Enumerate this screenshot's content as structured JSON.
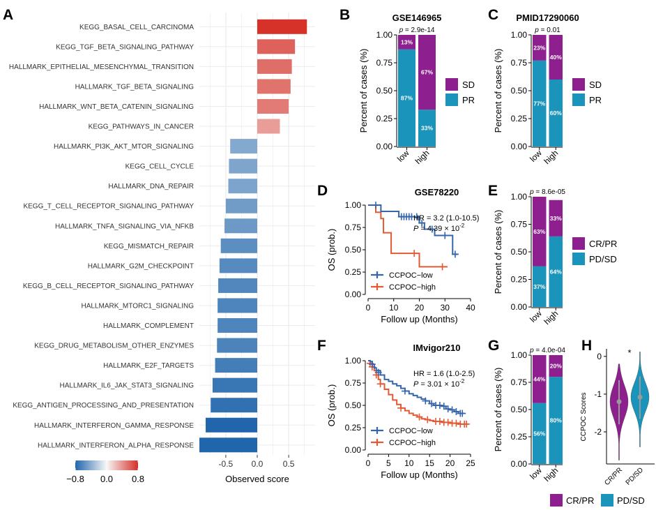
{
  "panel_letters": {
    "A": "A",
    "B": "B",
    "C": "C",
    "D": "D",
    "E": "E",
    "F": "F",
    "G": "G",
    "H": "H"
  },
  "colors": {
    "purple": "#8e1f8f",
    "teal": "#1a94bb",
    "blue_line": "#3565ab",
    "red_line": "#e25a33",
    "grid": "#ebebeb"
  },
  "chart_data": [
    {
      "id": "A",
      "type": "bar",
      "orientation": "horizontal",
      "xlabel": "Observed score",
      "xticks": [
        "-0.5",
        "0.0",
        "0.5"
      ],
      "xlim": [
        -0.92,
        0.92
      ],
      "legend": {
        "ticks": [
          "−0.8",
          "0.0",
          "0.8"
        ],
        "range": [
          -0.8,
          0.8
        ]
      },
      "categories": [
        "KEGG_BASAL_CELL_CARCINOMA",
        "KEGG_TGF_BETA_SIGNALING_PATHWAY",
        "HALLMARK_EPITHELIAL_MESENCHYMAL_TRANSITION",
        "HALLMARK_TGF_BETA_SIGNALING",
        "HALLMARK_WNT_BETA_CATENIN_SIGNALING",
        "KEGG_PATHWAYS_IN_CANCER",
        "HALLMARK_PI3K_AKT_MTOR_SIGNALING",
        "KEGG_CELL_CYCLE",
        "HALLMARK_DNA_REPAIR",
        "KEGG_T_CELL_RECEPTOR_SIGNALING_PATHWAY",
        "HALLMARK_TNFA_SIGNALING_VIA_NFKB",
        "KEGG_MISMATCH_REPAIR",
        "HALLMARK_G2M_CHECKPOINT",
        "KEGG_B_CELL_RECEPTOR_SIGNALING_PATHWAY",
        "HALLMARK_MTORC1_SIGNALING",
        "HALLMARK_COMPLEMENT",
        "KEGG_DRUG_METABOLISM_OTHER_ENZYMES",
        "HALLMARK_E2F_TARGETS",
        "HALLMARK_IL6_JAK_STAT3_SIGNALING",
        "KEGG_ANTIGEN_PROCESSING_AND_PRESENTATION",
        "HALLMARK_INTERFERON_GAMMA_RESPONSE",
        "HALLMARK_INTERFERON_ALPHA_RESPONSE"
      ],
      "values": [
        0.79,
        0.6,
        0.55,
        0.53,
        0.5,
        0.36,
        -0.43,
        -0.45,
        -0.46,
        -0.5,
        -0.52,
        -0.58,
        -0.6,
        -0.62,
        -0.63,
        -0.63,
        -0.64,
        -0.67,
        -0.71,
        -0.74,
        -0.82,
        -0.92
      ]
    },
    {
      "id": "B",
      "type": "stacked_bar",
      "title": "GSE146965",
      "pvalue": "p = 2.9e-14",
      "ylabel": "Percent of cases (%)",
      "yticks": [
        "0.00",
        "0.25",
        "0.50",
        "0.75",
        "1.00"
      ],
      "categories": [
        "low",
        "high"
      ],
      "series": [
        {
          "name": "PR",
          "values": [
            0.87,
            0.33
          ],
          "labels": [
            "87%",
            "33%"
          ]
        },
        {
          "name": "SD",
          "values": [
            0.13,
            0.67
          ],
          "labels": [
            "13%",
            "67%"
          ]
        }
      ],
      "legend": [
        "SD",
        "PR"
      ]
    },
    {
      "id": "C",
      "type": "stacked_bar",
      "title": "PMID17290060",
      "pvalue": "p = 0.01",
      "ylabel": "Percent of cases (%)",
      "yticks": [
        "0.00",
        "0.25",
        "0.50",
        "0.75",
        "1.00"
      ],
      "categories": [
        "low",
        "high"
      ],
      "series": [
        {
          "name": "PR",
          "values": [
            0.77,
            0.6
          ],
          "labels": [
            "77%",
            "60%"
          ]
        },
        {
          "name": "SD",
          "values": [
            0.23,
            0.4
          ],
          "labels": [
            "23%",
            "40%"
          ]
        }
      ],
      "legend": [
        "SD",
        "PR"
      ]
    },
    {
      "id": "D",
      "type": "line",
      "subtype": "kaplan-meier",
      "title": "GSE78220",
      "xlabel": "Follow up (Months)",
      "ylabel": "OS (prob.)",
      "xticks": [
        "0",
        "10",
        "20",
        "30",
        "40"
      ],
      "yticks": [
        "0.00",
        "0.25",
        "0.50",
        "0.75",
        "1.00"
      ],
      "xlim": [
        0,
        40
      ],
      "ylim": [
        0,
        1
      ],
      "hr_text": "HR = 3.2 (1.0-10.5)",
      "p_text": "P = 4.39 × 10",
      "p_exp": "-2",
      "series": [
        {
          "name": "CCPOC−low",
          "color": "blue",
          "steps": [
            [
              0,
              1
            ],
            [
              5,
              1
            ],
            [
              5,
              0.93
            ],
            [
              12,
              0.93
            ],
            [
              12,
              0.87
            ],
            [
              20,
              0.87
            ],
            [
              20,
              0.8
            ],
            [
              22,
              0.8
            ],
            [
              22,
              0.73
            ],
            [
              26,
              0.73
            ],
            [
              26,
              0.66
            ],
            [
              33,
              0.66
            ],
            [
              33,
              0.45
            ],
            [
              35,
              0.45
            ]
          ],
          "censors": [
            [
              3,
              1
            ],
            [
              13,
              0.87
            ],
            [
              14,
              0.87
            ],
            [
              15,
              0.87
            ],
            [
              16,
              0.87
            ],
            [
              17,
              0.87
            ],
            [
              19,
              0.87
            ],
            [
              21,
              0.8
            ],
            [
              25,
              0.73
            ],
            [
              30,
              0.66
            ],
            [
              34,
              0.45
            ]
          ]
        },
        {
          "name": "CCPOC−high",
          "color": "red",
          "steps": [
            [
              0,
              1
            ],
            [
              3,
              1
            ],
            [
              3,
              0.92
            ],
            [
              5,
              0.92
            ],
            [
              5,
              0.85
            ],
            [
              6,
              0.85
            ],
            [
              6,
              0.69
            ],
            [
              9,
              0.69
            ],
            [
              9,
              0.46
            ],
            [
              20,
              0.46
            ],
            [
              20,
              0.31
            ],
            [
              31,
              0.31
            ]
          ],
          "censors": [
            [
              18,
              0.46
            ],
            [
              29,
              0.31
            ]
          ]
        }
      ]
    },
    {
      "id": "E",
      "type": "stacked_bar",
      "pvalue": "p = 8.6e-05",
      "ylabel": "Percent of cases (%)",
      "yticks": [
        "0.00",
        "0.25",
        "0.50",
        "0.75",
        "1.00"
      ],
      "categories": [
        "low",
        "high"
      ],
      "series": [
        {
          "name": "PD/SD",
          "values": [
            0.37,
            0.64
          ],
          "labels": [
            "37%",
            "64%"
          ]
        },
        {
          "name": "CR/PR",
          "values": [
            0.63,
            0.33
          ],
          "labels": [
            "63%",
            "33%"
          ]
        }
      ],
      "legend": [
        "CR/PR",
        "PD/SD"
      ]
    },
    {
      "id": "F",
      "type": "line",
      "subtype": "kaplan-meier",
      "title": "IMvigor210",
      "xlabel": "Follow up (Months)",
      "ylabel": "OS (prob.)",
      "xticks": [
        "0",
        "5",
        "10",
        "15",
        "20",
        "25"
      ],
      "yticks": [
        "0.00",
        "0.25",
        "0.50",
        "0.75",
        "1.00"
      ],
      "xlim": [
        0,
        25
      ],
      "ylim": [
        0,
        1
      ],
      "hr_text": "HR = 1.6 (1.0-2.5)",
      "p_text": "P = 3.01 × 10",
      "p_exp": "-2",
      "series": [
        {
          "name": "CCPOC−low",
          "color": "blue",
          "steps": [
            [
              0,
              1
            ],
            [
              0.5,
              0.99
            ],
            [
              1,
              0.96
            ],
            [
              1.5,
              0.92
            ],
            [
              2,
              0.89
            ],
            [
              3,
              0.84
            ],
            [
              4,
              0.79
            ],
            [
              5,
              0.77
            ],
            [
              6,
              0.74
            ],
            [
              7,
              0.72
            ],
            [
              8,
              0.69
            ],
            [
              9,
              0.66
            ],
            [
              10,
              0.63
            ],
            [
              11,
              0.61
            ],
            [
              12,
              0.59
            ],
            [
              13,
              0.57
            ],
            [
              14,
              0.55
            ],
            [
              15,
              0.52
            ],
            [
              16,
              0.5
            ],
            [
              18,
              0.49
            ],
            [
              19,
              0.46
            ],
            [
              20,
              0.45
            ],
            [
              21,
              0.43
            ],
            [
              22,
              0.41
            ],
            [
              23.5,
              0.41
            ]
          ],
          "censors": [
            [
              1,
              0.96
            ],
            [
              2.5,
              0.87
            ],
            [
              9,
              0.66
            ],
            [
              14,
              0.55
            ],
            [
              15.5,
              0.52
            ],
            [
              16.5,
              0.5
            ],
            [
              17.5,
              0.5
            ],
            [
              18.5,
              0.49
            ],
            [
              19.5,
              0.46
            ],
            [
              20.5,
              0.45
            ],
            [
              21.5,
              0.43
            ],
            [
              22.5,
              0.41
            ],
            [
              23,
              0.41
            ]
          ]
        },
        {
          "name": "CCPOC−high",
          "color": "red",
          "steps": [
            [
              0,
              1
            ],
            [
              0.5,
              0.97
            ],
            [
              1,
              0.93
            ],
            [
              1.5,
              0.89
            ],
            [
              2,
              0.84
            ],
            [
              2.5,
              0.79
            ],
            [
              3,
              0.74
            ],
            [
              4,
              0.68
            ],
            [
              5,
              0.62
            ],
            [
              6,
              0.56
            ],
            [
              7,
              0.51
            ],
            [
              8,
              0.47
            ],
            [
              9,
              0.44
            ],
            [
              10,
              0.41
            ],
            [
              11,
              0.39
            ],
            [
              12,
              0.37
            ],
            [
              13,
              0.35
            ],
            [
              14,
              0.34
            ],
            [
              15,
              0.33
            ],
            [
              16,
              0.32
            ],
            [
              18,
              0.31
            ],
            [
              20,
              0.3
            ],
            [
              22,
              0.29
            ],
            [
              24.5,
              0.29
            ]
          ],
          "censors": [
            [
              0.5,
              0.97
            ],
            [
              1,
              0.93
            ],
            [
              2,
              0.84
            ],
            [
              3,
              0.74
            ],
            [
              8,
              0.47
            ],
            [
              12.5,
              0.37
            ],
            [
              14.5,
              0.34
            ],
            [
              16.5,
              0.32
            ],
            [
              17.5,
              0.32
            ],
            [
              18.5,
              0.31
            ],
            [
              19.5,
              0.31
            ],
            [
              20.5,
              0.3
            ],
            [
              21.5,
              0.3
            ],
            [
              22.5,
              0.29
            ],
            [
              23.5,
              0.29
            ],
            [
              24,
              0.29
            ]
          ]
        }
      ]
    },
    {
      "id": "G",
      "type": "stacked_bar",
      "pvalue": "p = 4.0e-04",
      "ylabel": "Percent of cases (%)",
      "yticks": [
        "0.00",
        "0.25",
        "0.50",
        "0.75",
        "1.00"
      ],
      "categories": [
        "low",
        "high"
      ],
      "series": [
        {
          "name": "PD/SD",
          "values": [
            0.56,
            0.8
          ],
          "labels": [
            "56%",
            "80%"
          ]
        },
        {
          "name": "CR/PR",
          "values": [
            0.44,
            0.2
          ],
          "labels": [
            "44%",
            "20%"
          ]
        }
      ]
    },
    {
      "id": "H",
      "type": "violin",
      "ylabel": "CCPOC Scores",
      "yticks": [
        "0",
        "-1",
        "-2"
      ],
      "ylim": [
        -2.85,
        0.2
      ],
      "categories": [
        "CR/PR",
        "PD/SD"
      ],
      "significance": "*",
      "groups": [
        {
          "name": "CR/PR",
          "color": "purple",
          "median": -1.2,
          "q1": -1.45,
          "q3": -0.98,
          "min": -2.75,
          "max": -0.2
        },
        {
          "name": "PD/SD",
          "color": "teal",
          "median": -1.08,
          "q1": -1.3,
          "q3": -0.88,
          "min": -2.4,
          "max": 0.12
        }
      ]
    }
  ],
  "shared_legend": [
    "CR/PR",
    "PD/SD"
  ]
}
